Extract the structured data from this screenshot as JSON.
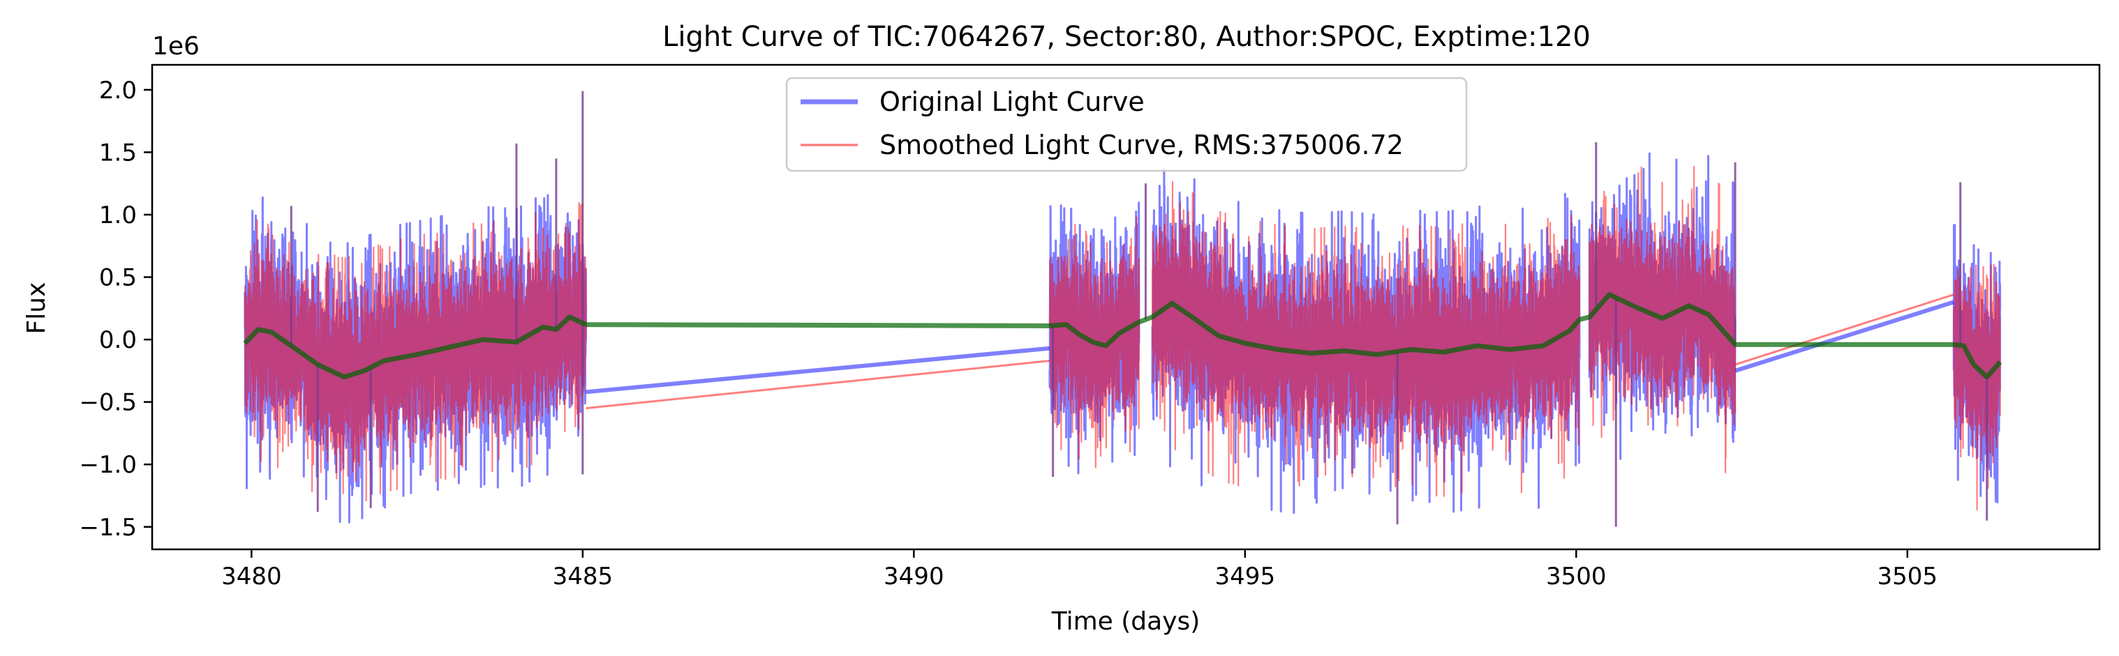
{
  "chart_data": {
    "type": "line",
    "title": "Light Curve of TIC:7064267, Sector:80, Author:SPOC, Exptime:120",
    "xlabel": "Time (days)",
    "ylabel": "Flux",
    "y_offset_label": "1e6",
    "xlim": [
      3478.5,
      3507.9
    ],
    "ylim": [
      -1.68,
      2.2
    ],
    "x_ticks": [
      3480,
      3485,
      3490,
      3495,
      3500,
      3505
    ],
    "y_ticks": [
      -1.5,
      -1.0,
      -0.5,
      0.0,
      0.5,
      1.0,
      1.5,
      2.0
    ],
    "y_tick_labels": [
      "−1.5",
      "−1.0",
      "−0.5",
      "0.0",
      "0.5",
      "1.0",
      "1.5",
      "2.0"
    ],
    "grid": false,
    "legend_position": "top-center",
    "units": "1e6",
    "segments": [
      {
        "start": 3479.9,
        "end": 3485.05,
        "amp_up": 1.0,
        "amp_down": 1.0
      },
      {
        "start": 3492.05,
        "end": 3493.4,
        "amp_up": 0.9,
        "amp_down": 0.95
      },
      {
        "start": 3493.6,
        "end": 3500.05,
        "amp_up": 1.05,
        "amp_down": 1.1
      },
      {
        "start": 3500.2,
        "end": 3502.4,
        "amp_up": 1.2,
        "amp_down": 1.1
      },
      {
        "start": 3505.7,
        "end": 3506.4,
        "amp_up": 0.9,
        "amp_down": 1.1
      }
    ],
    "series": [
      {
        "name": "Original Light Curve",
        "color": "#0000ff",
        "alpha": 0.5,
        "gap_lines": [
          {
            "x": [
              3485.05,
              3492.05
            ],
            "y": [
              -0.42,
              -0.07
            ]
          },
          {
            "x": [
              3502.4,
              3505.7
            ],
            "y": [
              -0.25,
              0.3
            ]
          }
        ]
      },
      {
        "name": "Smoothed Light Curve, RMS:375006.72",
        "color": "#ff0000",
        "alpha": 0.5,
        "gap_lines": [
          {
            "x": [
              3485.05,
              3492.05
            ],
            "y": [
              -0.55,
              -0.17
            ]
          },
          {
            "x": [
              3502.4,
              3505.7
            ],
            "y": [
              -0.2,
              0.36
            ]
          }
        ]
      },
      {
        "name": "",
        "color": "#006400",
        "alpha": 0.7,
        "x": [
          3479.9,
          3480.1,
          3480.3,
          3480.6,
          3481.0,
          3481.4,
          3481.7,
          3482.0,
          3482.5,
          3483.0,
          3483.5,
          3484.0,
          3484.4,
          3484.6,
          3484.8,
          3485.05,
          3492.05,
          3492.3,
          3492.5,
          3492.7,
          3492.9,
          3493.1,
          3493.4,
          3493.6,
          3493.9,
          3494.2,
          3494.6,
          3495.0,
          3495.5,
          3496.0,
          3496.5,
          3497.0,
          3497.5,
          3498.0,
          3498.5,
          3499.0,
          3499.5,
          3499.9,
          3500.05,
          3500.2,
          3500.5,
          3500.9,
          3501.3,
          3501.7,
          3502.0,
          3502.4,
          3505.7,
          3505.85,
          3506.0,
          3506.2,
          3506.4
        ],
        "y": [
          -0.03,
          0.08,
          0.06,
          -0.05,
          -0.2,
          -0.3,
          -0.25,
          -0.17,
          -0.12,
          -0.06,
          0.0,
          -0.02,
          0.1,
          0.08,
          0.18,
          0.12,
          0.11,
          0.12,
          0.04,
          -0.02,
          -0.05,
          0.05,
          0.14,
          0.18,
          0.29,
          0.18,
          0.03,
          -0.03,
          -0.08,
          -0.11,
          -0.09,
          -0.12,
          -0.08,
          -0.1,
          -0.05,
          -0.08,
          -0.05,
          0.07,
          0.16,
          0.18,
          0.36,
          0.26,
          0.17,
          0.27,
          0.2,
          -0.04,
          -0.04,
          -0.05,
          -0.2,
          -0.3,
          -0.18
        ]
      }
    ],
    "extreme_spikes": [
      {
        "x": 3480.6,
        "y": 1.07
      },
      {
        "x": 3481.0,
        "y": -1.38
      },
      {
        "x": 3481.8,
        "y": -1.35
      },
      {
        "x": 3484.0,
        "y": 1.57
      },
      {
        "x": 3484.6,
        "y": 1.45
      },
      {
        "x": 3485.0,
        "y": 1.99
      },
      {
        "x": 3485.0,
        "y": -1.08
      },
      {
        "x": 3492.1,
        "y": -1.1
      },
      {
        "x": 3493.5,
        "y": 1.25
      },
      {
        "x": 3497.3,
        "y": -1.48
      },
      {
        "x": 3500.3,
        "y": 1.58
      },
      {
        "x": 3500.6,
        "y": -1.5
      },
      {
        "x": 3502.4,
        "y": 1.42
      },
      {
        "x": 3505.8,
        "y": 1.26
      },
      {
        "x": 3506.2,
        "y": -1.45
      }
    ]
  }
}
